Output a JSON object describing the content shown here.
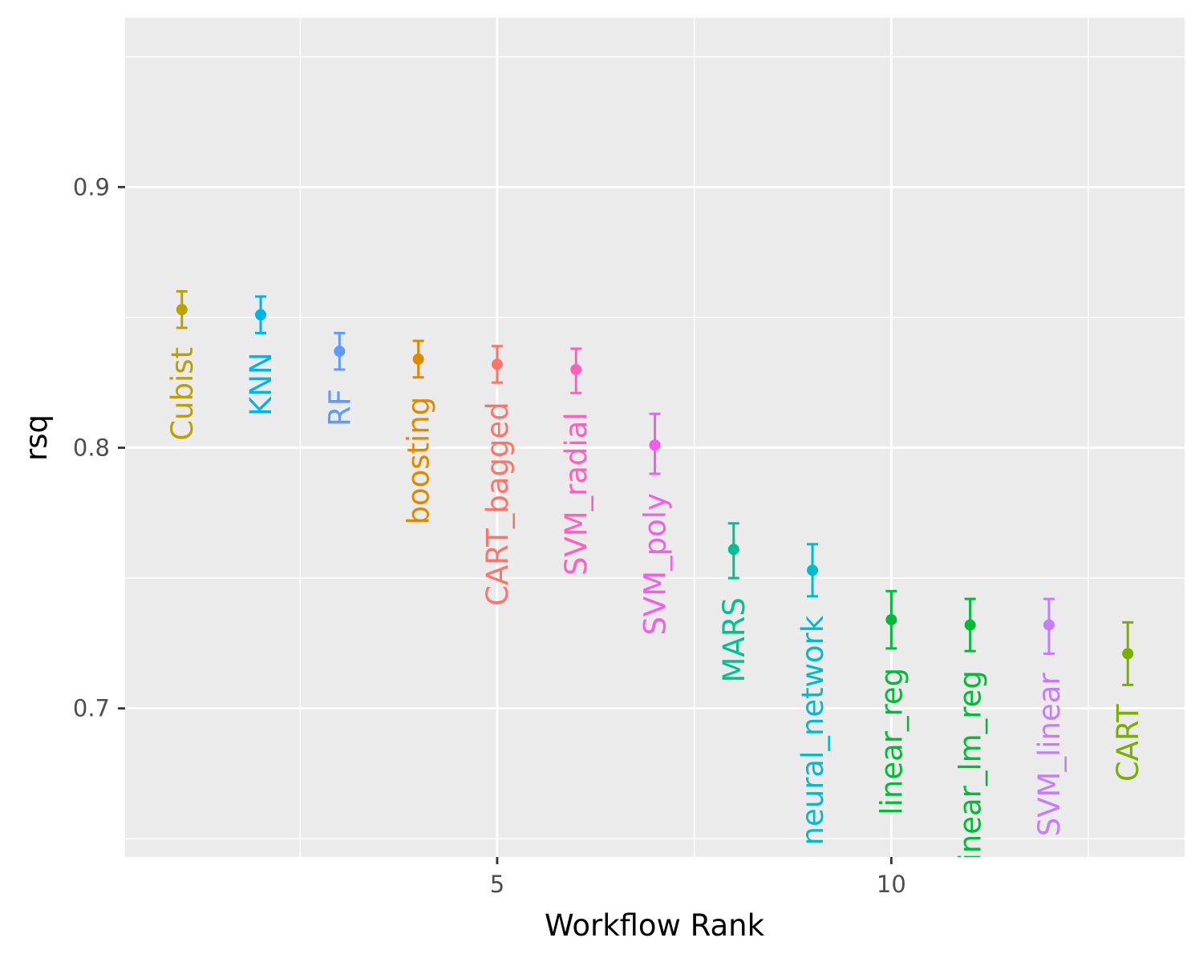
{
  "chart_data": {
    "type": "scatter",
    "xlabel": "Workflow Rank",
    "ylabel": "rsq",
    "xlim": [
      0.28,
      13.72
    ],
    "ylim": [
      0.643,
      0.965
    ],
    "x_ticks": [
      5,
      10
    ],
    "x_tick_labels": [
      "5",
      "10"
    ],
    "x_minor_ticks": [
      2.5,
      7.5,
      12.5
    ],
    "y_ticks": [
      0.7,
      0.8,
      0.9
    ],
    "y_tick_labels": [
      "0.7",
      "0.8",
      "0.9"
    ],
    "y_minor_ticks": [
      0.65,
      0.75,
      0.85,
      0.95
    ],
    "grid": true,
    "legend": "none",
    "series": [
      {
        "name": "Cubist",
        "color": "#BBA000",
        "rank": 1,
        "mean": 0.853,
        "lower": 0.846,
        "upper": 0.86
      },
      {
        "name": "KNN",
        "color": "#00B4E8",
        "rank": 2,
        "mean": 0.851,
        "lower": 0.844,
        "upper": 0.858
      },
      {
        "name": "RF",
        "color": "#5E9BFF",
        "rank": 3,
        "mean": 0.837,
        "lower": 0.83,
        "upper": 0.844
      },
      {
        "name": "boosting",
        "color": "#DD8A00",
        "rank": 4,
        "mean": 0.834,
        "lower": 0.827,
        "upper": 0.841
      },
      {
        "name": "CART_bagged",
        "color": "#F8766D",
        "rank": 5,
        "mean": 0.832,
        "lower": 0.825,
        "upper": 0.839
      },
      {
        "name": "SVM_radial",
        "color": "#FF61B9",
        "rank": 6,
        "mean": 0.83,
        "lower": 0.821,
        "upper": 0.838
      },
      {
        "name": "SVM_poly",
        "color": "#F25DEC",
        "rank": 7,
        "mean": 0.801,
        "lower": 0.79,
        "upper": 0.813
      },
      {
        "name": "MARS",
        "color": "#00C08D",
        "rank": 8,
        "mean": 0.761,
        "lower": 0.75,
        "upper": 0.771
      },
      {
        "name": "neural_network",
        "color": "#00BBCB",
        "rank": 9,
        "mean": 0.753,
        "lower": 0.743,
        "upper": 0.763
      },
      {
        "name": "linear_reg",
        "color": "#00BA38",
        "rank": 10,
        "mean": 0.734,
        "lower": 0.723,
        "upper": 0.745
      },
      {
        "name": "linear_lm_reg",
        "color": "#00BA38",
        "rank": 11,
        "mean": 0.732,
        "lower": 0.722,
        "upper": 0.742
      },
      {
        "name": "SVM_linear",
        "color": "#C77CFF",
        "rank": 12,
        "mean": 0.732,
        "lower": 0.721,
        "upper": 0.742
      },
      {
        "name": "CART",
        "color": "#7CAE00",
        "rank": 13,
        "mean": 0.721,
        "lower": 0.709,
        "upper": 0.733
      }
    ]
  }
}
